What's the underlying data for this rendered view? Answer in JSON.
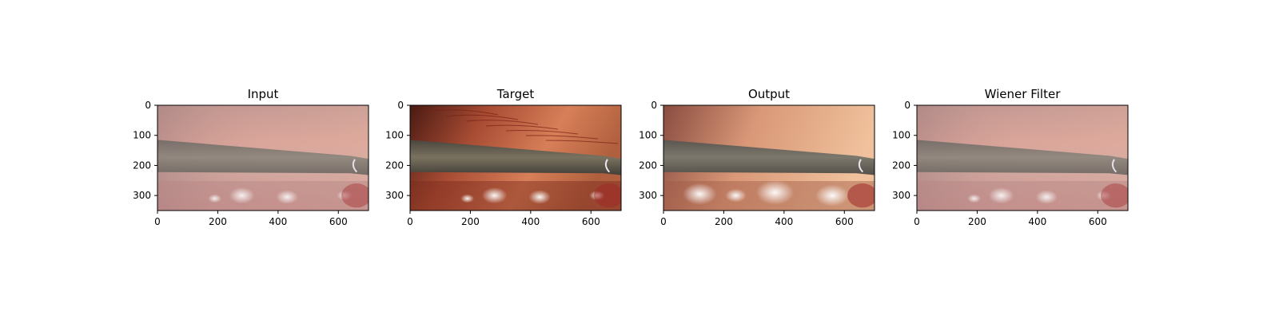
{
  "figure": {
    "panels": [
      {
        "title": "Input",
        "style": "input"
      },
      {
        "title": "Target",
        "style": "target"
      },
      {
        "title": "Output",
        "style": "output"
      },
      {
        "title": "Wiener Filter",
        "style": "wiener"
      }
    ],
    "x_ticks": [
      "0",
      "200",
      "400",
      "600"
    ],
    "y_ticks": [
      "0",
      "100",
      "200",
      "300"
    ],
    "x_tick_values": [
      0,
      200,
      400,
      600
    ],
    "y_tick_values": [
      0,
      100,
      200,
      300
    ],
    "image_width": 700,
    "image_height": 350,
    "scene": "laparoscopic view with grey surgical instrument over pink tissue",
    "colors": {
      "tissue_light": "#e8a090",
      "tissue_dark": "#8a3a2a",
      "instrument": "#6e6a5e",
      "highlight": "#ffffff"
    }
  }
}
